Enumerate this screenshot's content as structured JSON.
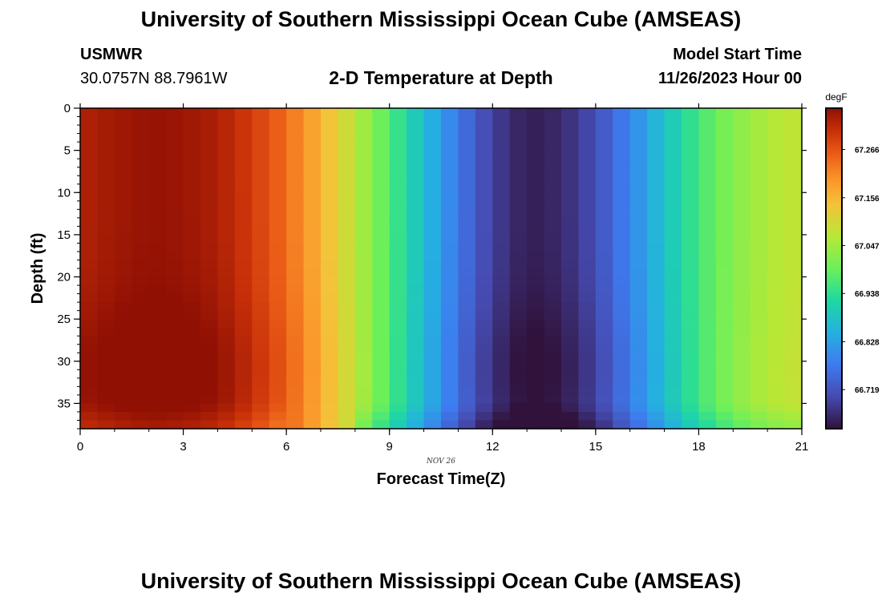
{
  "header": {
    "title": "University of Southern Mississippi Ocean Cube (AMSEAS)",
    "station": "USMWR",
    "coords": "30.0757N  88.7961W",
    "subtitle": "2-D Temperature at Depth",
    "start_label": "Model Start Time",
    "start_value": "11/26/2023 Hour 00"
  },
  "footer": {
    "title": "University of Southern Mississippi Ocean Cube (AMSEAS)"
  },
  "chart_data": {
    "type": "heatmap",
    "title": "2-D Temperature at Depth",
    "xlabel": "Forecast Time(Z)",
    "ylabel": "Depth (ft)",
    "date_label": "NOV 26",
    "xlim": [
      0,
      21
    ],
    "ylim": [
      0,
      38
    ],
    "x_ticks": [
      0,
      3,
      6,
      9,
      12,
      15,
      18,
      21
    ],
    "y_ticks": [
      0,
      5,
      10,
      15,
      20,
      25,
      30,
      35
    ],
    "colorbar": {
      "label": "degF",
      "range": [
        66.63,
        67.36
      ],
      "ticks": [
        "67.266",
        "67.156",
        "67.047",
        "66.938",
        "66.828",
        "66.719"
      ]
    },
    "time_profile": [
      {
        "t": 0,
        "v": 67.33
      },
      {
        "t": 1,
        "v": 67.345
      },
      {
        "t": 2,
        "v": 67.355
      },
      {
        "t": 3,
        "v": 67.35
      },
      {
        "t": 4,
        "v": 67.335
      },
      {
        "t": 5,
        "v": 67.295
      },
      {
        "t": 6,
        "v": 67.24
      },
      {
        "t": 7,
        "v": 67.16
      },
      {
        "t": 8,
        "v": 67.07
      },
      {
        "t": 9,
        "v": 66.97
      },
      {
        "t": 10,
        "v": 66.87
      },
      {
        "t": 11,
        "v": 66.77
      },
      {
        "t": 12,
        "v": 66.69
      },
      {
        "t": 13,
        "v": 66.645
      },
      {
        "t": 14,
        "v": 66.66
      },
      {
        "t": 15,
        "v": 66.71
      },
      {
        "t": 16,
        "v": 66.79
      },
      {
        "t": 17,
        "v": 66.88
      },
      {
        "t": 18,
        "v": 66.96
      },
      {
        "t": 19,
        "v": 67.02
      },
      {
        "t": 20,
        "v": 67.06
      },
      {
        "t": 21,
        "v": 67.08
      }
    ]
  }
}
